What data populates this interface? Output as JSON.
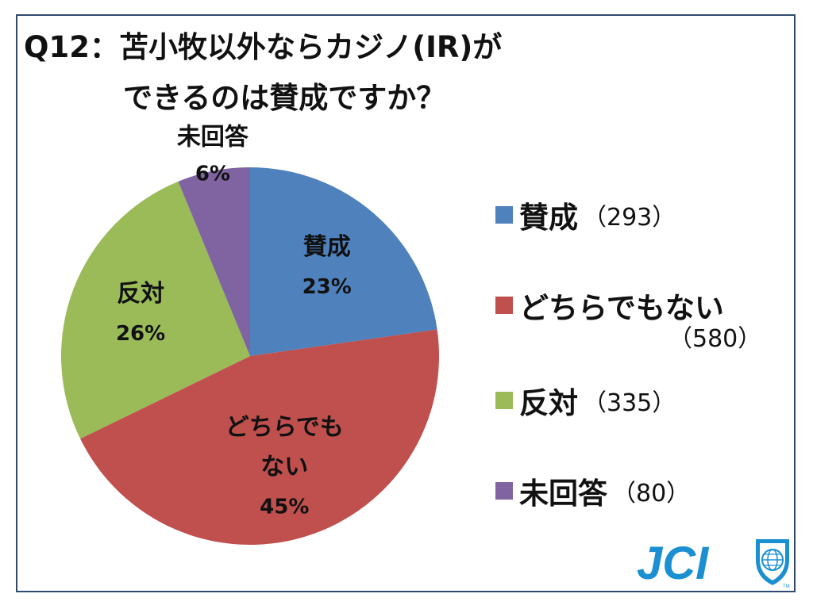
{
  "title": {
    "line1": "Q12：苫小牧以外ならカジノ(IR)が",
    "line2": "できるのは賛成ですか？"
  },
  "chart_data": {
    "type": "pie",
    "slices": [
      {
        "name": "賛成",
        "label_lines": [
          "賛成"
        ],
        "percent_label": "23%",
        "count": 293,
        "count_label": "（293）",
        "color": "#4f81bd"
      },
      {
        "name": "どちらでもない",
        "label_lines": [
          "どちらでも",
          "ない"
        ],
        "percent_label": "45%",
        "count": 580,
        "count_label": "（580）",
        "color": "#c0504d"
      },
      {
        "name": "反対",
        "label_lines": [
          "反対"
        ],
        "percent_label": "26%",
        "count": 335,
        "count_label": "（335）",
        "color": "#9bbb59"
      },
      {
        "name": "未回答",
        "label_lines": [
          "未回答"
        ],
        "percent_label": "6%",
        "count": 80,
        "count_label": "（80）",
        "color": "#8064a2"
      }
    ],
    "start_angle": "12 o'clock",
    "direction": "clockwise",
    "legend_position": "right"
  },
  "logo": {
    "text": "JCI",
    "tm": "TM",
    "color": "#1a8fd1"
  }
}
